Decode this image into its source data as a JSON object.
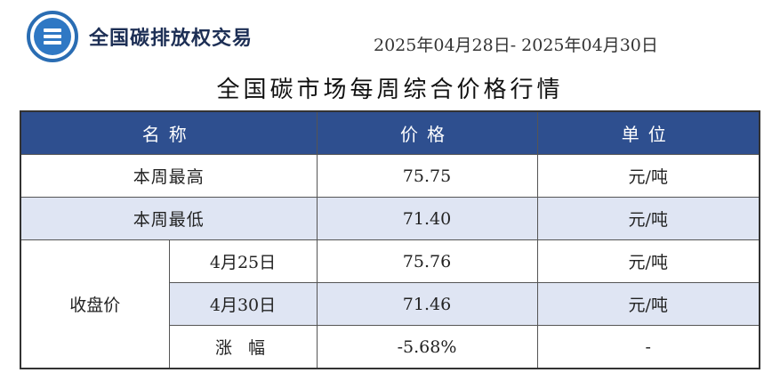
{
  "header": {
    "logo_name": "全国碳排放权交易",
    "date_range": "2025年04月28日- 2025年04月30日"
  },
  "title": "全国碳市场每周综合价格行情",
  "table": {
    "columns": [
      "名称",
      "价格",
      "单位"
    ],
    "rows": [
      {
        "name": "本周最高",
        "price": "75.75",
        "unit": "元/吨"
      },
      {
        "name": "本周最低",
        "price": "71.40",
        "unit": "元/吨"
      }
    ],
    "closing_group_label": "收盘价",
    "closing_rows": [
      {
        "date": "4月25日",
        "price": "75.76",
        "unit": "元/吨"
      },
      {
        "date": "4月30日",
        "price": "71.46",
        "unit": "元/吨"
      },
      {
        "date": "涨 幅",
        "price": "-5.68%",
        "unit": "-"
      }
    ]
  },
  "colors": {
    "header_bg": "#2e4f8f",
    "alt_row_bg": "#dfe5f3",
    "logo_blue": "#2f78c4"
  }
}
